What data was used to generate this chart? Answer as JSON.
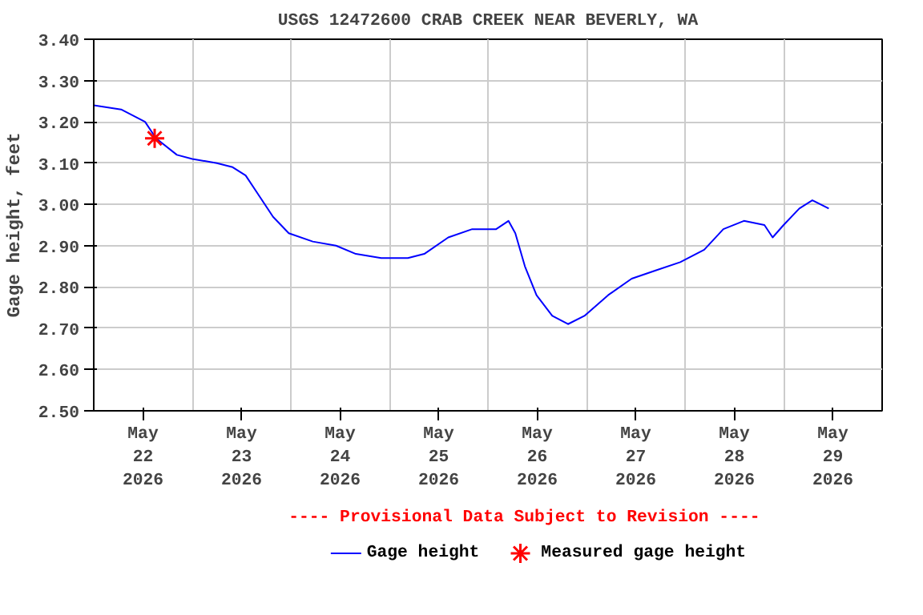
{
  "chart_data": {
    "type": "line",
    "title": "USGS 12472600 CRAB CREEK NEAR BEVERLY, WA",
    "ylabel": "Gage height, feet",
    "annotations": [
      "---- Provisional Data Subject to Revision ----"
    ],
    "xlim": [
      "2026-05-22T00:00",
      "2026-05-30T00:00"
    ],
    "xticks": [
      {
        "value": "2026-05-22T12:00",
        "label": "May\n22\n2026"
      },
      {
        "value": "2026-05-23T12:00",
        "label": "May\n23\n2026"
      },
      {
        "value": "2026-05-24T12:00",
        "label": "May\n24\n2026"
      },
      {
        "value": "2026-05-25T12:00",
        "label": "May\n25\n2026"
      },
      {
        "value": "2026-05-26T12:00",
        "label": "May\n26\n2026"
      },
      {
        "value": "2026-05-27T12:00",
        "label": "May\n27\n2026"
      },
      {
        "value": "2026-05-28T12:00",
        "label": "May\n28\n2026"
      },
      {
        "value": "2026-05-29T12:00",
        "label": "May\n29\n2026"
      },
      {
        "value": "2026-05-23T00:00",
        "label": null
      },
      {
        "value": "2026-05-24T00:00",
        "label": null
      },
      {
        "value": "2026-05-25T00:00",
        "label": null
      },
      {
        "value": "2026-05-26T00:00",
        "label": null
      },
      {
        "value": "2026-05-27T00:00",
        "label": null
      },
      {
        "value": "2026-05-28T00:00",
        "label": null
      },
      {
        "value": "2026-05-29T00:00",
        "label": null
      }
    ],
    "ylim": [
      2.5,
      3.4
    ],
    "yticks": [
      {
        "value": 2.5,
        "label": "2.50"
      },
      {
        "value": 2.6,
        "label": "2.60"
      },
      {
        "value": 2.7,
        "label": "2.70"
      },
      {
        "value": 2.8,
        "label": "2.80"
      },
      {
        "value": 2.9,
        "label": "2.90"
      },
      {
        "value": 3.0,
        "label": "3.00"
      },
      {
        "value": 3.1,
        "label": "3.10"
      },
      {
        "value": 3.2,
        "label": "3.20"
      },
      {
        "value": 3.3,
        "label": "3.30"
      },
      {
        "value": 3.4,
        "label": "3.40"
      }
    ],
    "grid": true,
    "legend": "bottom",
    "series": [
      {
        "name": "Gage height",
        "color": "#0000ff",
        "marker": "none",
        "x": [
          "2026-05-22T00:00",
          "2026-05-22T06:40",
          "2026-05-22T12:30",
          "2026-05-22T15:10",
          "2026-05-22T20:15",
          "2026-05-23T00:00",
          "2026-05-23T06:00",
          "2026-05-23T09:50",
          "2026-05-23T13:00",
          "2026-05-23T15:40",
          "2026-05-23T19:40",
          "2026-05-23T23:30",
          "2026-05-24T05:20",
          "2026-05-24T11:00",
          "2026-05-24T15:50",
          "2026-05-24T22:00",
          "2026-05-25T04:30",
          "2026-05-25T08:30",
          "2026-05-25T14:20",
          "2026-05-25T20:10",
          "2026-05-26T02:00",
          "2026-05-26T05:00",
          "2026-05-26T06:40",
          "2026-05-26T09:00",
          "2026-05-26T11:50",
          "2026-05-26T15:40",
          "2026-05-26T19:30",
          "2026-05-26T23:30",
          "2026-05-27T05:15",
          "2026-05-27T11:00",
          "2026-05-27T16:50",
          "2026-05-27T22:50",
          "2026-05-28T04:40",
          "2026-05-28T09:20",
          "2026-05-28T14:20",
          "2026-05-28T19:20",
          "2026-05-28T21:20",
          "2026-05-29T00:00",
          "2026-05-29T03:50",
          "2026-05-29T07:00",
          "2026-05-29T11:00"
        ],
        "values": [
          3.24,
          3.23,
          3.2,
          3.16,
          3.12,
          3.11,
          3.1,
          3.09,
          3.07,
          3.03,
          2.97,
          2.93,
          2.91,
          2.9,
          2.88,
          2.87,
          2.87,
          2.88,
          2.92,
          2.94,
          2.94,
          2.96,
          2.93,
          2.85,
          2.78,
          2.73,
          2.71,
          2.73,
          2.78,
          2.82,
          2.84,
          2.86,
          2.89,
          2.94,
          2.96,
          2.95,
          2.92,
          2.95,
          2.99,
          3.01,
          2.99
        ]
      },
      {
        "name": "Measured gage height",
        "type": "scatter",
        "color": "#ff0000",
        "marker": "cross",
        "x": [
          "2026-05-22T14:50"
        ],
        "values": [
          3.16
        ]
      }
    ]
  }
}
